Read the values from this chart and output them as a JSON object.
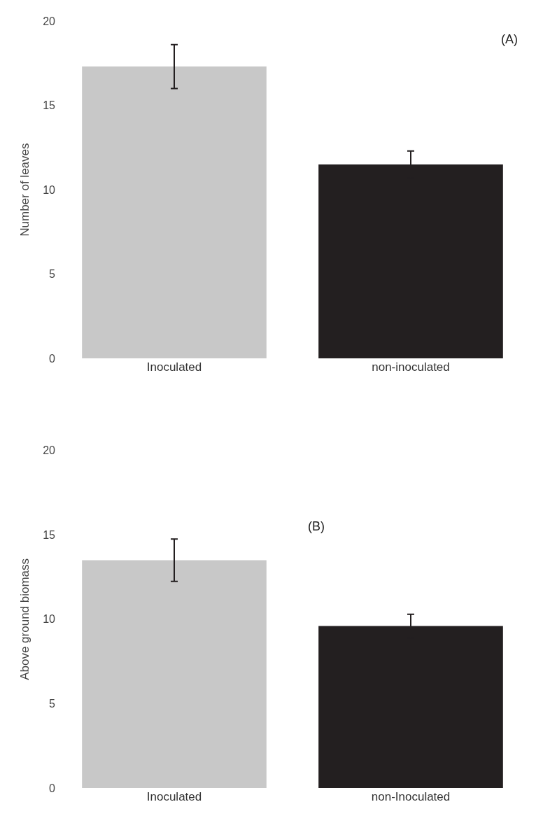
{
  "chart_data": [
    {
      "type": "bar",
      "categories": [
        "Inoculated",
        "non-inoculated"
      ],
      "values": [
        17.3,
        11.5
      ],
      "errors": [
        1.3,
        0.8
      ],
      "colors": [
        "#c8c8c8",
        "#231f20"
      ],
      "ylabel": "Number of leaves",
      "ylim": [
        0,
        20
      ],
      "yticks": [
        0,
        5,
        10,
        15,
        20
      ],
      "annotations": [
        "(A)"
      ]
    },
    {
      "type": "bar",
      "categories": [
        "Inoculated",
        "non-Inoculated"
      ],
      "values": [
        13.5,
        9.6
      ],
      "errors": [
        1.25,
        0.7
      ],
      "colors": [
        "#c8c8c8",
        "#231f20"
      ],
      "ylabel": "Above ground biomass",
      "ylim": [
        0,
        20
      ],
      "yticks": [
        0,
        5,
        10,
        15,
        20
      ],
      "annotations": [
        "(B)"
      ]
    }
  ]
}
